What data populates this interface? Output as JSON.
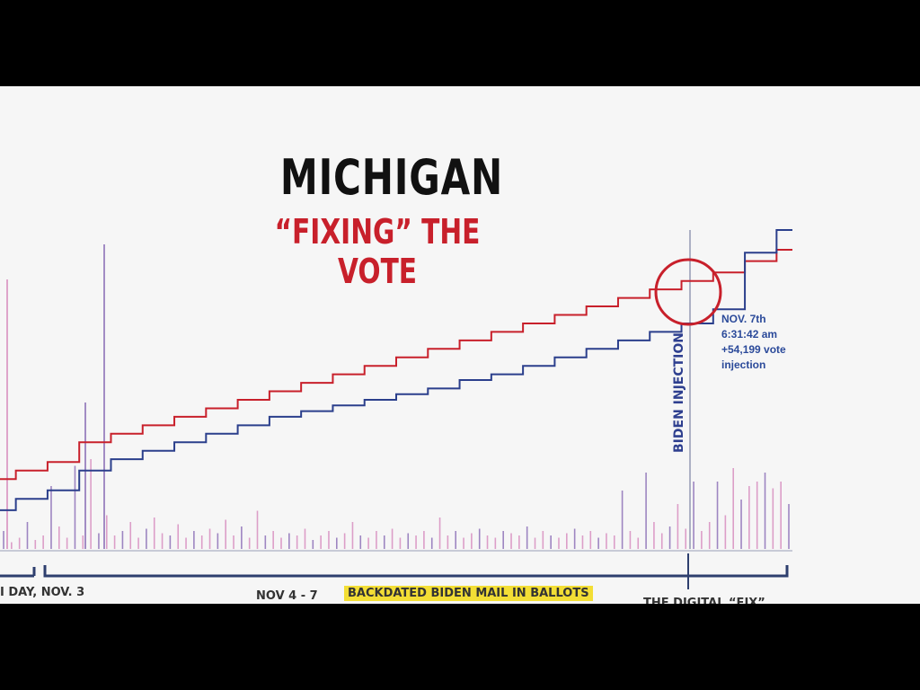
{
  "chart_data": {
    "type": "line",
    "title": "MICHIGAN",
    "subtitle": "“FIXING” THE VOTE",
    "xlabel": "",
    "ylabel": "",
    "grid": false,
    "x": [
      0,
      4,
      8,
      12,
      16,
      20,
      24,
      28,
      32,
      36,
      40,
      44,
      48,
      52,
      56,
      60,
      64,
      68,
      72,
      76,
      80,
      84,
      88,
      92,
      96,
      100
    ],
    "series": [
      {
        "color": "#c8202b",
        "values": [
          12,
          15,
          18,
          25,
          28,
          31,
          34,
          37,
          40,
          43,
          46,
          49,
          52,
          55,
          58,
          61,
          64,
          67,
          70,
          73,
          76,
          79,
          82,
          85,
          89,
          93
        ]
      },
      {
        "color": "#2b3f8c",
        "values": [
          1,
          5,
          8,
          15,
          19,
          22,
          25,
          28,
          31,
          34,
          36,
          38,
          40,
          42,
          44,
          47,
          49,
          52,
          55,
          58,
          61,
          64,
          67,
          72,
          92,
          100
        ]
      }
    ],
    "spikes": [
      8,
      3,
      5,
      12,
      4,
      6,
      28,
      10,
      5,
      37,
      6,
      40,
      7,
      15,
      6,
      8,
      12,
      5,
      9,
      14,
      7,
      6,
      11,
      5,
      8,
      6,
      9,
      7,
      13,
      6,
      10,
      5,
      17,
      6,
      8,
      5,
      7,
      6,
      9,
      4,
      6,
      8,
      5,
      7,
      12,
      6,
      5,
      8,
      6,
      9,
      5,
      7,
      6,
      8,
      5,
      14,
      6,
      8,
      5,
      7,
      9,
      6,
      5,
      8,
      7,
      6,
      10,
      5,
      8,
      6,
      5,
      7,
      9,
      6,
      8,
      5,
      7,
      6,
      26,
      8,
      5,
      34,
      12,
      7,
      10,
      20,
      9,
      30,
      8,
      12,
      30,
      15,
      36,
      22,
      28,
      30,
      34,
      27,
      30,
      20
    ]
  },
  "annotation": {
    "line1": "NOV. 7th",
    "line2": "6:31:42 am",
    "line3": "+54,199 vote",
    "line4": "injection"
  },
  "vertical_label": "BIDEN INJECTION",
  "periods": {
    "left": "I DAY, NOV. 3",
    "middle": "NOV 4 - 7",
    "highlight": "BACKDATED BIDEN MAIL IN BALLOTS",
    "right": "THE DIGITAL “FIX”"
  },
  "colors": {
    "red": "#c8202b",
    "blue": "#2b3f8c",
    "spike_pink": "#d88fc0",
    "spike_purple": "#8e72b8",
    "highlight": "#f3de35"
  }
}
